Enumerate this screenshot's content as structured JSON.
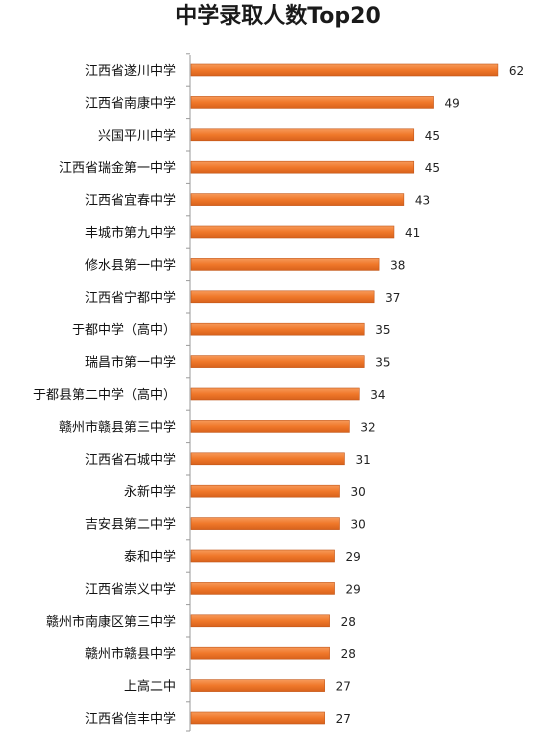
{
  "chart_data": {
    "type": "bar",
    "orientation": "horizontal",
    "title": "中学录取人数Top20",
    "categories": [
      "江西省遂川中学",
      "江西省南康中学",
      "兴国平川中学",
      "江西省瑞金第一中学",
      "江西省宜春中学",
      "丰城市第九中学",
      "修水县第一中学",
      "江西省宁都中学",
      "于都中学（高中）",
      "瑞昌市第一中学",
      "于都县第二中学（高中）",
      "赣州市赣县第三中学",
      "江西省石城中学",
      "永新中学",
      "吉安县第二中学",
      "泰和中学",
      "江西省崇义中学",
      "赣州市南康区第三中学",
      "赣州市赣县中学",
      "上高二中",
      "江西省信丰中学"
    ],
    "values": [
      62,
      49,
      45,
      45,
      43,
      41,
      38,
      37,
      35,
      35,
      34,
      32,
      31,
      30,
      30,
      29,
      29,
      28,
      28,
      27,
      27
    ],
    "xlim": [
      0,
      70
    ],
    "grid": false,
    "legend": "none",
    "bar_color": "#f0782a",
    "bar_edge_color": "#c2571a",
    "axis_color": "#9a9a9a"
  }
}
